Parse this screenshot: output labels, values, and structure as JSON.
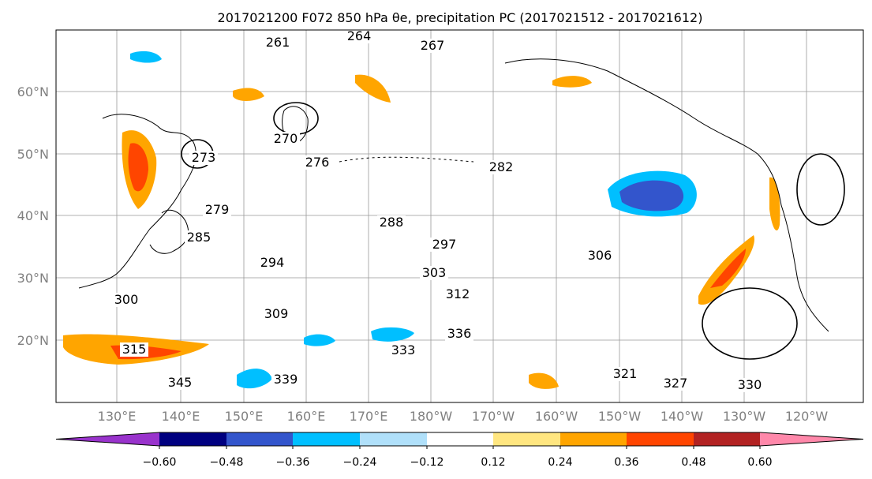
{
  "chart_data": {
    "type": "contour",
    "title": "2017021200 F072 850 hPa θe, precipitation PC (2017021512 - 2017021612)",
    "lat_ticks": [
      "20°N",
      "30°N",
      "40°N",
      "50°N",
      "60°N"
    ],
    "lon_ticks": [
      "130°E",
      "140°E",
      "150°E",
      "160°E",
      "170°E",
      "180°W",
      "170°W",
      "160°W",
      "150°W",
      "140°W",
      "130°W",
      "120°W"
    ],
    "colorbar": {
      "ticks": [
        "−0.60",
        "−0.48",
        "−0.36",
        "−0.24",
        "−0.12",
        "0.12",
        "0.24",
        "0.36",
        "0.48",
        "0.60"
      ],
      "bins": [
        {
          "range": "< -0.60",
          "color": "#9933cc"
        },
        {
          "range": "-0.60 to -0.48",
          "color": "#000080"
        },
        {
          "range": "-0.48 to -0.36",
          "color": "#3355cc"
        },
        {
          "range": "-0.36 to -0.24",
          "color": "#00bfff"
        },
        {
          "range": "-0.24 to -0.12",
          "color": "#b0e0fa"
        },
        {
          "range": "-0.12 to 0.12",
          "color": "#ffffff"
        },
        {
          "range": "0.12 to 0.24",
          "color": "#ffe680"
        },
        {
          "range": "0.24 to 0.36",
          "color": "#ffa500"
        },
        {
          "range": "0.36 to 0.48",
          "color": "#ff4500"
        },
        {
          "range": "0.48 to 0.60",
          "color": "#b22222"
        },
        {
          "range": "> 0.60",
          "color": "#ff88aa"
        }
      ]
    },
    "contour_labels": [
      "261",
      "264",
      "267",
      "270",
      "273",
      "276",
      "279",
      "282",
      "285",
      "288",
      "294",
      "297",
      "300",
      "303",
      "306",
      "309",
      "312",
      "315",
      "321",
      "327",
      "330",
      "333",
      "336",
      "339",
      "345"
    ]
  }
}
